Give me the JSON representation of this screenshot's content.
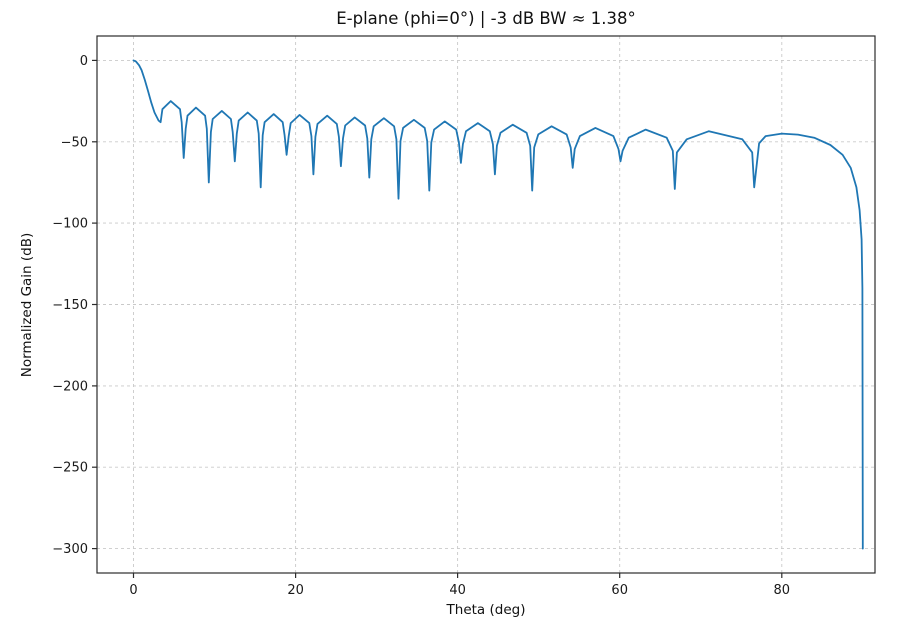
{
  "chart_data": {
    "type": "line",
    "title": "E-plane (phi=0°) | -3 dB BW ≈ 1.38°",
    "xlabel": "Theta (deg)",
    "ylabel": "Normalized Gain (dB)",
    "xlim": [
      -4.5,
      91.5
    ],
    "ylim": [
      -315,
      15
    ],
    "xticks": [
      0,
      20,
      40,
      60,
      80
    ],
    "yticks": [
      0,
      -50,
      -100,
      -150,
      -200,
      -250,
      -300
    ],
    "grid": true,
    "grid_style": "dashed",
    "legend": null,
    "colors": {
      "line": "#1f77b4",
      "grid": "#c9c9c9",
      "spine": "#2b2b2b",
      "text": "#1a1a1a",
      "background": "#ffffff"
    },
    "series": [
      {
        "name": "E-plane normalized gain",
        "points": [
          [
            0,
            0
          ],
          [
            0.3,
            -0.6
          ],
          [
            0.69,
            -3
          ],
          [
            1.0,
            -6
          ],
          [
            1.4,
            -12
          ],
          [
            1.8,
            -19
          ],
          [
            2.2,
            -26
          ],
          [
            2.6,
            -32
          ],
          [
            3.1,
            -37
          ],
          [
            3.35,
            -38
          ],
          [
            3.57,
            -30
          ],
          [
            4.6,
            -25
          ],
          [
            5.74,
            -30
          ],
          [
            5.95,
            -38
          ],
          [
            6.2,
            -60
          ],
          [
            6.45,
            -42
          ],
          [
            6.67,
            -34
          ],
          [
            7.7,
            -29
          ],
          [
            8.84,
            -34
          ],
          [
            9.05,
            -42
          ],
          [
            9.3,
            -75
          ],
          [
            9.55,
            -44
          ],
          [
            9.78,
            -36
          ],
          [
            10.9,
            -31
          ],
          [
            12.02,
            -36
          ],
          [
            12.25,
            -44
          ],
          [
            12.5,
            -62
          ],
          [
            12.75,
            -45
          ],
          [
            12.98,
            -37
          ],
          [
            14.1,
            -32
          ],
          [
            15.22,
            -37
          ],
          [
            15.45,
            -45
          ],
          [
            15.7,
            -78
          ],
          [
            15.95,
            -46
          ],
          [
            16.18,
            -38
          ],
          [
            17.3,
            -33
          ],
          [
            18.42,
            -38
          ],
          [
            18.65,
            -46
          ],
          [
            18.9,
            -58
          ],
          [
            19.15,
            -46.5
          ],
          [
            19.4,
            -38.5
          ],
          [
            20.5,
            -33.5
          ],
          [
            21.7,
            -38.5
          ],
          [
            21.95,
            -46.5
          ],
          [
            22.2,
            -70
          ],
          [
            22.45,
            -47
          ],
          [
            22.71,
            -39
          ],
          [
            23.9,
            -34
          ],
          [
            25.09,
            -39
          ],
          [
            25.35,
            -47
          ],
          [
            25.6,
            -65
          ],
          [
            25.85,
            -48
          ],
          [
            26.13,
            -40
          ],
          [
            27.3,
            -35
          ],
          [
            28.58,
            -40
          ],
          [
            28.85,
            -48
          ],
          [
            29.1,
            -72
          ],
          [
            29.35,
            -48.5
          ],
          [
            29.64,
            -40.5
          ],
          [
            30.9,
            -35.5
          ],
          [
            32.16,
            -40.5
          ],
          [
            32.45,
            -48.5
          ],
          [
            32.7,
            -85
          ],
          [
            32.95,
            -49.5
          ],
          [
            33.27,
            -41.5
          ],
          [
            34.6,
            -36.5
          ],
          [
            35.93,
            -41.5
          ],
          [
            36.25,
            -49.5
          ],
          [
            36.5,
            -80
          ],
          [
            36.75,
            -50.5
          ],
          [
            37.09,
            -42.5
          ],
          [
            38.4,
            -37.5
          ],
          [
            39.82,
            -42.5
          ],
          [
            40.15,
            -50.5
          ],
          [
            40.4,
            -63
          ],
          [
            40.65,
            -51.5
          ],
          [
            41.03,
            -43.5
          ],
          [
            42.5,
            -38.5
          ],
          [
            43.97,
            -43.5
          ],
          [
            44.35,
            -51.5
          ],
          [
            44.6,
            -70
          ],
          [
            44.85,
            -52.5
          ],
          [
            45.29,
            -44.5
          ],
          [
            46.8,
            -39.5
          ],
          [
            48.51,
            -44.5
          ],
          [
            48.95,
            -52.5
          ],
          [
            49.2,
            -80
          ],
          [
            49.45,
            -53.5
          ],
          [
            49.95,
            -45.5
          ],
          [
            51.6,
            -40.5
          ],
          [
            53.45,
            -45.5
          ],
          [
            53.95,
            -53.5
          ],
          [
            54.2,
            -66
          ],
          [
            54.45,
            -54.5
          ],
          [
            55.09,
            -46.5
          ],
          [
            57.0,
            -41.5
          ],
          [
            59.22,
            -46.5
          ],
          [
            59.85,
            -54.5
          ],
          [
            60.1,
            -62
          ],
          [
            60.35,
            -55.5
          ],
          [
            61.11,
            -47.5
          ],
          [
            63.2,
            -42.5
          ],
          [
            65.8,
            -47.5
          ],
          [
            66.55,
            -55.5
          ],
          [
            66.8,
            -79
          ],
          [
            67.05,
            -56.5
          ],
          [
            68.27,
            -48.5
          ],
          [
            71.0,
            -43.5
          ],
          [
            75.13,
            -48.5
          ],
          [
            76.35,
            -56.5
          ],
          [
            76.6,
            -78
          ],
          [
            77.2,
            -51
          ],
          [
            78,
            -46.5
          ],
          [
            80,
            -45
          ],
          [
            82,
            -45.6
          ],
          [
            84,
            -47.5
          ],
          [
            86,
            -52
          ],
          [
            87.5,
            -58
          ],
          [
            88.5,
            -66
          ],
          [
            89.2,
            -78
          ],
          [
            89.6,
            -92
          ],
          [
            89.85,
            -110
          ],
          [
            89.95,
            -140
          ],
          [
            90,
            -300
          ]
        ]
      }
    ]
  }
}
